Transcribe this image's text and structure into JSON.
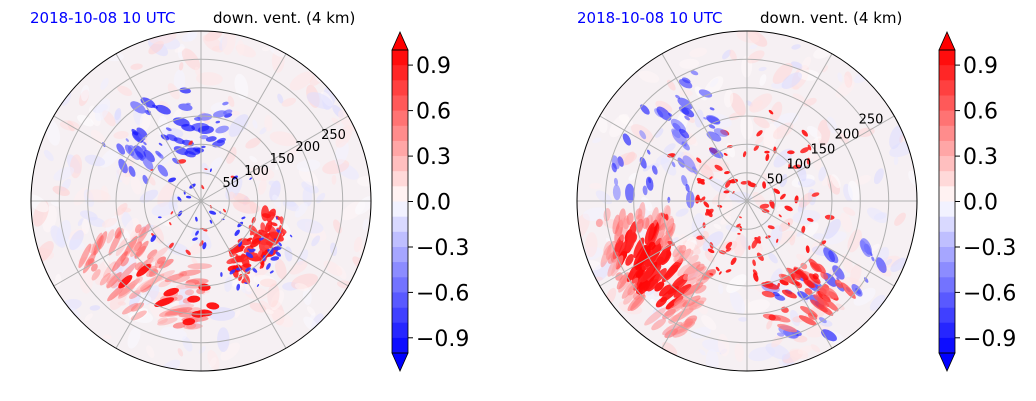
{
  "chart_data": [
    {
      "type": "heatmap",
      "projection": "polar",
      "title_date": "2018-10-08 10 UTC",
      "title_variable": "down. vent. (4 km)",
      "radial_ticks": [
        "50",
        "100",
        "150",
        "200",
        "250"
      ],
      "radial_tick_values": [
        50,
        100,
        150,
        200,
        250
      ],
      "radial_max": 300,
      "angular_gridlines_deg": [
        0,
        30,
        60,
        90,
        120,
        150,
        180,
        210,
        240,
        270,
        300,
        330
      ],
      "grid": true,
      "colorbar": {
        "cmap": "bwr",
        "range": [
          -1.0,
          1.0
        ],
        "extend": "both",
        "tick_labels": [
          "0.9",
          "0.6",
          "0.3",
          "0.0",
          "−0.3",
          "−0.6",
          "−0.9"
        ],
        "tick_values": [
          0.9,
          0.6,
          0.3,
          0.0,
          -0.3,
          -0.6,
          -0.9
        ]
      },
      "features": [
        {
          "sign": "positive",
          "strength": 0.9,
          "region": "east arc, r≈110–150, angle −10° to −60°"
        },
        {
          "sign": "positive",
          "strength": 0.6,
          "region": "southwest bands, r≈120–200"
        },
        {
          "sign": "negative",
          "strength": 0.7,
          "region": "northwest/north arc, r≈80–200"
        }
      ]
    },
    {
      "type": "heatmap",
      "projection": "polar",
      "title_date": "2018-10-08 10 UTC",
      "title_variable": "down. vent. (4 km)",
      "radial_ticks": [
        "50",
        "100",
        "150",
        "200",
        "250"
      ],
      "radial_tick_values": [
        50,
        100,
        150,
        200,
        250
      ],
      "radial_max": 300,
      "angular_gridlines_deg": [
        0,
        30,
        60,
        90,
        120,
        150,
        180,
        210,
        240,
        270,
        300,
        330
      ],
      "grid": true,
      "colorbar": {
        "cmap": "bwr",
        "range": [
          -1.0,
          1.0
        ],
        "extend": "both",
        "tick_labels": [
          "0.9",
          "0.6",
          "0.3",
          "0.0",
          "−0.3",
          "−0.6",
          "−0.9"
        ],
        "tick_values": [
          0.9,
          0.6,
          0.3,
          0.0,
          -0.3,
          -0.6,
          -0.9
        ]
      },
      "features": [
        {
          "sign": "positive",
          "strength": 1.0,
          "region": "southwest band, r≈150–270"
        },
        {
          "sign": "positive",
          "strength": 0.8,
          "region": "inner scattered cells, r≈30–160"
        },
        {
          "sign": "negative",
          "strength": 0.7,
          "region": "northwest and southeast patches"
        }
      ]
    }
  ]
}
